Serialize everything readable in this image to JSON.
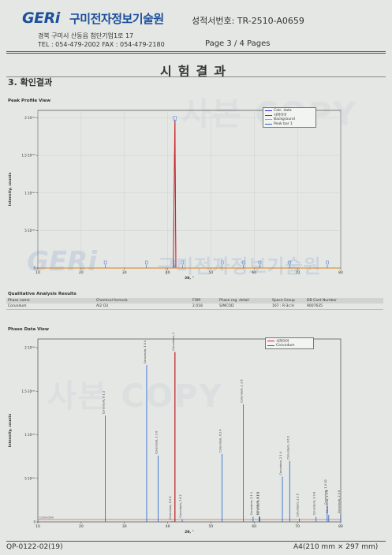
{
  "header": {
    "logo_text": "GERi",
    "org_name": "구미전자정보기술원",
    "cert_no": "성적서번호: TR-2510-A0659",
    "address": "경북 구미시 산동읍 첨단기업1로 17",
    "tel_fax": "TEL : 054-479-2002 FAX : 054-479-2180",
    "page": "Page   3 / 4  Pages"
  },
  "title": "시험결과",
  "section": "3. 확인결과",
  "watermark": {
    "logo": "GERi",
    "org": "구미전자정보기술원",
    "text1": "사본 COPY",
    "text2": "사본 COPY"
  },
  "peak_profile": {
    "panel_title": "Peak Profile View",
    "legend": [
      {
        "label": "Calc. data",
        "color": "#2b2bd8"
      },
      {
        "label": "사파이어",
        "color": "#cc2222"
      },
      {
        "label": "Background",
        "color": "#d8a020"
      },
      {
        "label": "Peak bar 1",
        "color": "#2060d0"
      }
    ]
  },
  "analysis": {
    "panel_title": "Qualitative Analysis Results",
    "columns": [
      "Phase name",
      "Chemical formula",
      "FOM",
      "Phase reg. detail",
      "Space Group",
      "DB Card Number"
    ],
    "rows": [
      [
        "Corundum",
        "Al2 O3",
        "2.018",
        "S/MCOD",
        "167 : R-3c:H",
        "9007635"
      ]
    ]
  },
  "phase_data": {
    "panel_title": "Phase Data View",
    "legend": [
      {
        "label": "사파이어",
        "color": "#cc2222"
      },
      {
        "label": "Corundum",
        "color": "#2060d0"
      }
    ],
    "baseline_label": "Corundum"
  },
  "footer": {
    "left": "QP-0122-02(19)",
    "right": "A4(210 mm × 297 mm)"
  },
  "chart_data": [
    {
      "type": "line",
      "title": "Peak Profile View",
      "xlabel": "2θ, °",
      "ylabel": "Intensity, counts",
      "xlim": [
        10,
        80
      ],
      "ylim": [
        0,
        2100000
      ],
      "x_ticks": [
        "10",
        "20",
        "30",
        "40",
        "50",
        "60",
        "70",
        "80"
      ],
      "y_ticks": [
        "0",
        "5·10⁵⁰⁰",
        "1·10⁵⁰⁰",
        "1.5·10⁵⁰⁰",
        "2·10⁵⁰⁰"
      ],
      "grid": true,
      "legend_position": "top-right",
      "series": [
        {
          "name": "Calc. data",
          "x": [
            10,
            41.3,
            41.68,
            41.9,
            42.2,
            80
          ],
          "y": [
            0,
            0,
            2000000,
            0,
            0,
            0
          ]
        },
        {
          "name": "사파이어",
          "x": [
            10,
            41.3,
            41.68,
            41.9,
            42.2,
            80
          ],
          "y": [
            0,
            0,
            2000000,
            0,
            0,
            0
          ]
        },
        {
          "name": "Background",
          "x": [
            10,
            80
          ],
          "y": [
            0,
            0
          ]
        },
        {
          "name": "Peak bar 1",
          "x": [
            41.68
          ],
          "y": [
            2000000
          ]
        }
      ],
      "peak_markers": [
        {
          "x": 41.68,
          "label": "1"
        },
        {
          "x": 25.6,
          "label": ""
        },
        {
          "x": 35.1,
          "label": ""
        },
        {
          "x": 43.4,
          "label": ""
        },
        {
          "x": 52.6,
          "label": ""
        },
        {
          "x": 57.5,
          "label": ""
        },
        {
          "x": 61.3,
          "label": ""
        },
        {
          "x": 68.2,
          "label": ""
        },
        {
          "x": 76.9,
          "label": ""
        }
      ]
    },
    {
      "type": "bar",
      "title": "Phase Data View",
      "xlabel": "2θ, °",
      "ylabel": "Intensity, counts",
      "xlim": [
        10,
        80
      ],
      "ylim": [
        0,
        2100000
      ],
      "x_ticks": [
        "10",
        "20",
        "30",
        "40",
        "50",
        "60",
        "70",
        "80"
      ],
      "y_ticks": [
        "0",
        "5·10⁵⁰⁰",
        "1·10⁵⁰⁰",
        "1.5·10⁵⁰⁰",
        "2·10⁵⁰⁰"
      ],
      "series": [
        {
          "name": "사파이어",
          "x": [
            41.68
          ],
          "y": [
            1950000
          ]
        },
        {
          "name": "Corundum",
          "peaks": [
            {
              "x": 25.58,
              "y": 1220000,
              "label": "Corundum, 0 1 2"
            },
            {
              "x": 35.15,
              "y": 1800000,
              "label": "Corundum, 1 0 4"
            },
            {
              "x": 37.78,
              "y": 760000,
              "label": "Corundum, 1 1 0"
            },
            {
              "x": 41.68,
              "y": 1950000,
              "label": "Corundum, 1 1 3"
            },
            {
              "x": 41.0,
              "y": 10000,
              "label": "Corundum, 0 0 6"
            },
            {
              "x": 43.36,
              "y": 30000,
              "label": "Corundum, 2 0 2"
            },
            {
              "x": 52.55,
              "y": 780000,
              "label": "Corundum, 0 2 4"
            },
            {
              "x": 57.5,
              "y": 1350000,
              "label": "Corundum, 1 1 6"
            },
            {
              "x": 59.74,
              "y": 60000,
              "label": "Corundum, 2 1 1"
            },
            {
              "x": 61.12,
              "y": 60000,
              "label": "Corundum, 1 2 2"
            },
            {
              "x": 61.3,
              "y": 60000,
              "label": "Corundum, 0 1 8"
            },
            {
              "x": 66.52,
              "y": 520000,
              "label": "Corundum, 2 1 4"
            },
            {
              "x": 68.2,
              "y": 700000,
              "label": "Corundum, 3 0 0"
            },
            {
              "x": 70.42,
              "y": 40000,
              "label": "Corundum, 1 2 5"
            },
            {
              "x": 74.3,
              "y": 60000,
              "label": "Corundum, 2 0 8"
            },
            {
              "x": 76.87,
              "y": 180000,
              "label": "Corundum, 1 0 10"
            },
            {
              "x": 77.23,
              "y": 80000,
              "label": "Corundum, 1 1 9"
            },
            {
              "x": 80.0,
              "y": 80000,
              "label": "Corundum, 2 2 0"
            }
          ]
        }
      ]
    }
  ]
}
